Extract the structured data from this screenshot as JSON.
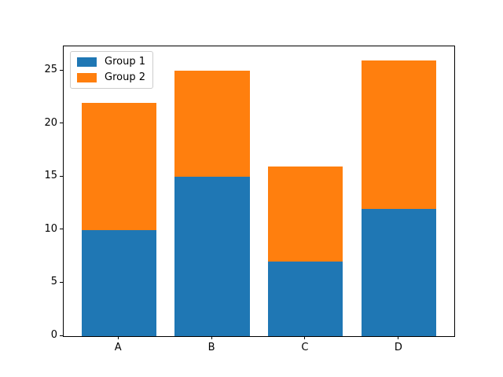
{
  "chart_data": {
    "type": "bar",
    "stacked": true,
    "categories": [
      "A",
      "B",
      "C",
      "D"
    ],
    "series": [
      {
        "name": "Group 1",
        "color": "#1f77b4",
        "values": [
          10,
          15,
          7,
          12
        ]
      },
      {
        "name": "Group 2",
        "color": "#ff7f0e",
        "values": [
          12,
          10,
          9,
          14
        ]
      }
    ],
    "totals": [
      22,
      25,
      16,
      26
    ],
    "y_ticks": [
      0,
      5,
      10,
      15,
      20,
      25
    ],
    "ylim": [
      0,
      27.3
    ],
    "title": "",
    "xlabel": "",
    "ylabel": "",
    "grid": false,
    "legend": {
      "position": "upper left",
      "entries": [
        "Group 1",
        "Group 2"
      ]
    }
  }
}
